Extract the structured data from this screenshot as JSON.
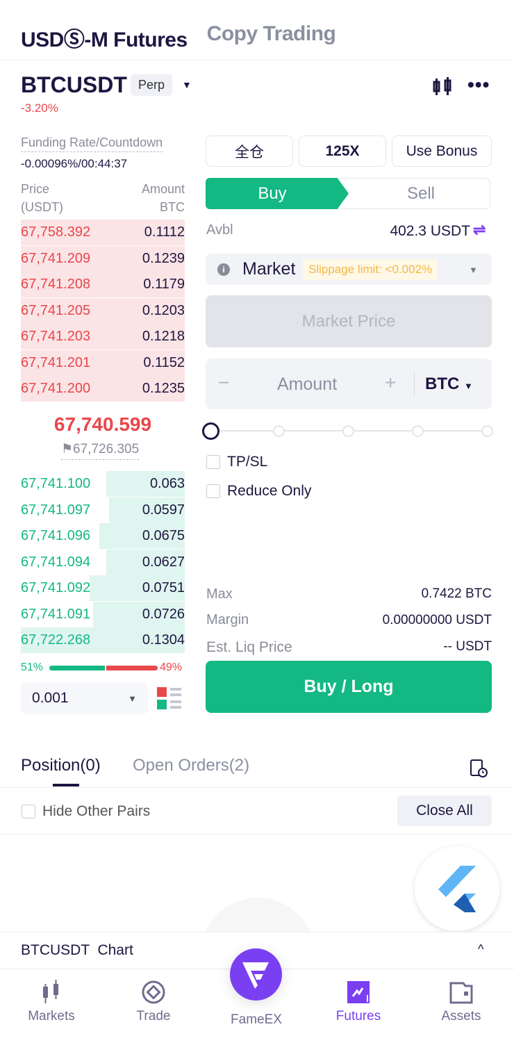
{
  "header": {
    "tabs": [
      {
        "label": "USDⓈ-M Futures",
        "active": true
      },
      {
        "label": "Copy Trading",
        "active": false
      }
    ]
  },
  "symbol": {
    "name": "BTCUSDT",
    "type": "Perp",
    "change": "-3.20%",
    "actions": [
      "candlestick-icon",
      "more-icon"
    ]
  },
  "funding": {
    "label": "Funding Rate/Countdown",
    "value": "-0.00096%/00:44:37"
  },
  "orderbook": {
    "price_header": "Price",
    "price_unit": "(USDT)",
    "amount_header": "Amount",
    "amount_unit": "BTC",
    "asks": [
      [
        "67,758.392",
        "0.1112"
      ],
      [
        "67,741.209",
        "0.1239"
      ],
      [
        "67,741.208",
        "0.1179"
      ],
      [
        "67,741.205",
        "0.1203"
      ],
      [
        "67,741.203",
        "0.1218"
      ],
      [
        "67,741.201",
        "0.1152"
      ],
      [
        "67,741.200",
        "0.1235"
      ]
    ],
    "last_price": "67,740.599",
    "mark_price": "67,726.305",
    "bids": [
      [
        "67,741.100",
        "0.063"
      ],
      [
        "67,741.097",
        "0.0597"
      ],
      [
        "67,741.096",
        "0.0675"
      ],
      [
        "67,741.094",
        "0.0627"
      ],
      [
        "67,741.092",
        "0.0751"
      ],
      [
        "67,741.091",
        "0.0726"
      ],
      [
        "67,722.268",
        "0.1304"
      ]
    ],
    "buy_ratio": "51%",
    "sell_ratio": "49%",
    "buy_pct": 51,
    "precision": "0.001"
  },
  "colors": {
    "green": "#13b883",
    "red": "#e8474c",
    "purple": "#7b3ff2",
    "ask_bg": "#fbe4e5",
    "bid_bg": "#dff5ef"
  },
  "order": {
    "margin_mode": "全仓",
    "leverage": "125X",
    "bonus": "Use Bonus",
    "buy": "Buy",
    "sell": "Sell",
    "avbl_label": "Avbl",
    "avbl_value": "402.3 USDT",
    "order_type": "Market",
    "slippage": "Slippage limit: <0.002%",
    "price_placeholder": "Market Price",
    "amount_placeholder": "Amount",
    "amount_unit": "BTC",
    "tpsl": "TP/SL",
    "reduce_only": "Reduce Only",
    "max_label": "Max",
    "max_value": "0.7422 BTC",
    "margin_label": "Margin",
    "margin_value": "0.00000000 USDT",
    "liq_label": "Est. Liq Price",
    "liq_value": "-- USDT",
    "submit": "Buy / Long"
  },
  "positions": {
    "tabs": [
      "Position(0)",
      "Open Orders(2)"
    ],
    "hide_other": "Hide Other Pairs",
    "close_all": "Close All"
  },
  "chart_bar": {
    "label": "BTCUSDT  Chart"
  },
  "nav": [
    {
      "label": "Markets"
    },
    {
      "label": "Trade"
    },
    {
      "label": "FameEX"
    },
    {
      "label": "Futures",
      "active": true
    },
    {
      "label": "Assets"
    }
  ]
}
